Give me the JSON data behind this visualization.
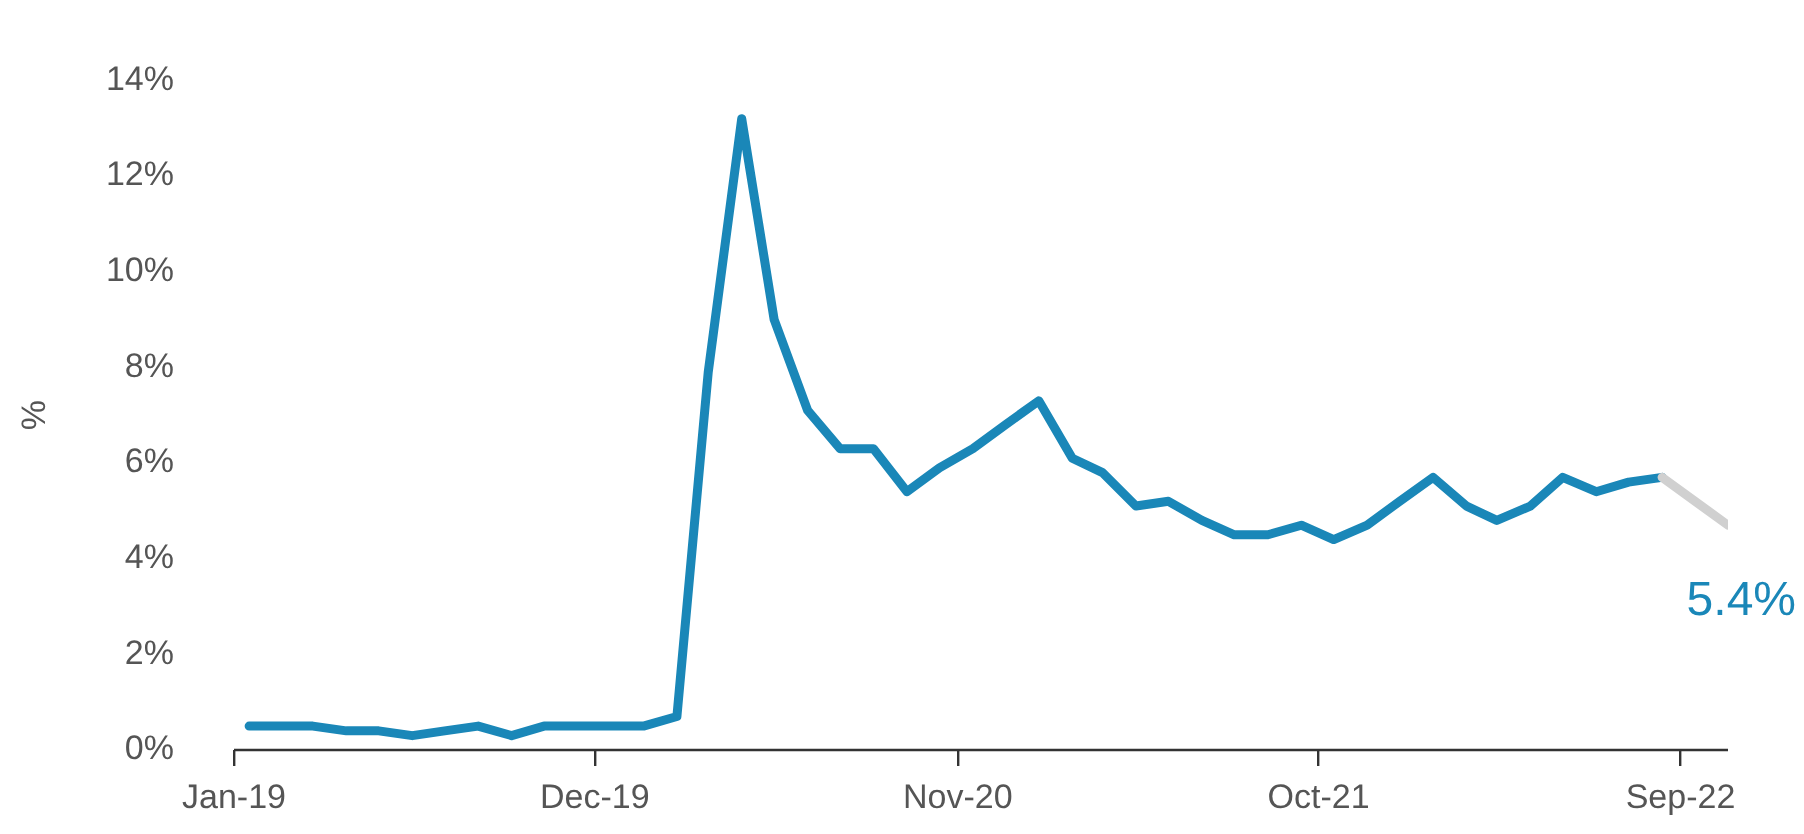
{
  "chart_data": {
    "type": "line",
    "ylabel": "%",
    "xlim": [
      "2019-01-01",
      "2022-10-15"
    ],
    "xticks": [
      {
        "value": "2019-01-01",
        "label": "Jan-19"
      },
      {
        "value": "2019-12-01",
        "label": "Dec-19"
      },
      {
        "value": "2020-11-01",
        "label": "Nov-20"
      },
      {
        "value": "2021-10-01",
        "label": "Oct-21"
      },
      {
        "value": "2022-09-01",
        "label": "Sep-22"
      }
    ],
    "ylim": [
      0,
      14
    ],
    "yticks": [
      {
        "value": 0,
        "label": "0%"
      },
      {
        "value": 2,
        "label": "2%"
      },
      {
        "value": 4,
        "label": "4%"
      },
      {
        "value": 6,
        "label": "6%"
      },
      {
        "value": 8,
        "label": "8%"
      },
      {
        "value": 10,
        "label": "10%"
      },
      {
        "value": 12,
        "label": "12%"
      },
      {
        "value": 14,
        "label": "14%"
      }
    ],
    "grid": false,
    "legend": false,
    "marker": "none",
    "line_style": "solid",
    "series": [
      {
        "color": "#1a87b8",
        "x": [
          "2019-01-15",
          "2019-02-15",
          "2019-03-15",
          "2019-04-15",
          "2019-05-15",
          "2019-06-15",
          "2019-07-15",
          "2019-08-15",
          "2019-09-15",
          "2019-10-15",
          "2019-11-15",
          "2019-12-15",
          "2020-01-15",
          "2020-02-15",
          "2020-03-15",
          "2020-04-15",
          "2020-05-15",
          "2020-06-15",
          "2020-07-15",
          "2020-08-15",
          "2020-09-15",
          "2020-10-15",
          "2020-11-15",
          "2020-12-15",
          "2021-01-15",
          "2021-02-15",
          "2021-03-15",
          "2021-04-15",
          "2021-05-15",
          "2021-06-15",
          "2021-07-15",
          "2021-08-15",
          "2021-09-15",
          "2021-10-15",
          "2021-11-15",
          "2021-12-15",
          "2022-01-15",
          "2022-02-15",
          "2022-03-15",
          "2022-04-15",
          "2022-05-15",
          "2022-06-15",
          "2022-07-15",
          "2022-08-15"
        ],
        "values": [
          0.5,
          0.5,
          0.5,
          0.4,
          0.4,
          0.3,
          0.4,
          0.5,
          0.3,
          0.5,
          0.5,
          0.5,
          0.5,
          0.7,
          7.9,
          13.2,
          9.0,
          7.1,
          6.3,
          6.3,
          5.4,
          5.9,
          6.3,
          6.8,
          7.3,
          6.1,
          5.8,
          5.1,
          5.2,
          4.8,
          4.5,
          4.5,
          4.7,
          4.4,
          4.7,
          5.2,
          5.7,
          5.1,
          4.8,
          5.1,
          5.7,
          5.4,
          5.6,
          5.7
        ]
      },
      {
        "color": "#d0d0d0",
        "x": [
          "2022-08-15",
          "2022-10-15"
        ],
        "values": [
          5.7,
          4.7
        ]
      }
    ],
    "annotations": [
      "5.4%"
    ]
  }
}
